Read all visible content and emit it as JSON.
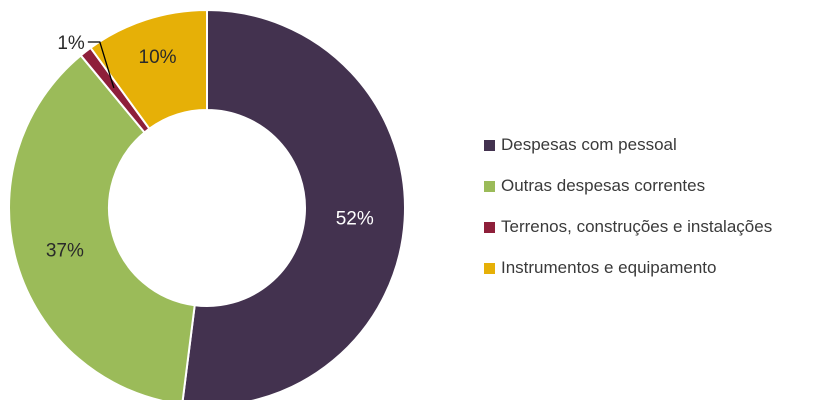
{
  "chart_data": {
    "type": "pie",
    "donut": true,
    "start_angle_deg": 0,
    "direction": "clockwise",
    "legend_position": "right",
    "title": "",
    "categories": [
      "Despesas com pessoal",
      "Outras despesas correntes",
      "Terrenos, construções e instalações",
      "Instrumentos e equipamento"
    ],
    "values": [
      52,
      37,
      1,
      10
    ],
    "data_labels": [
      "52%",
      "37%",
      "1%",
      "10%"
    ],
    "colors": [
      "#43324f",
      "#9bbb59",
      "#8e1f3a",
      "#e6b007"
    ],
    "label_colors": [
      "#ffffff",
      "#2a2a2a",
      "#2a2a2a",
      "#2a2a2a"
    ]
  }
}
